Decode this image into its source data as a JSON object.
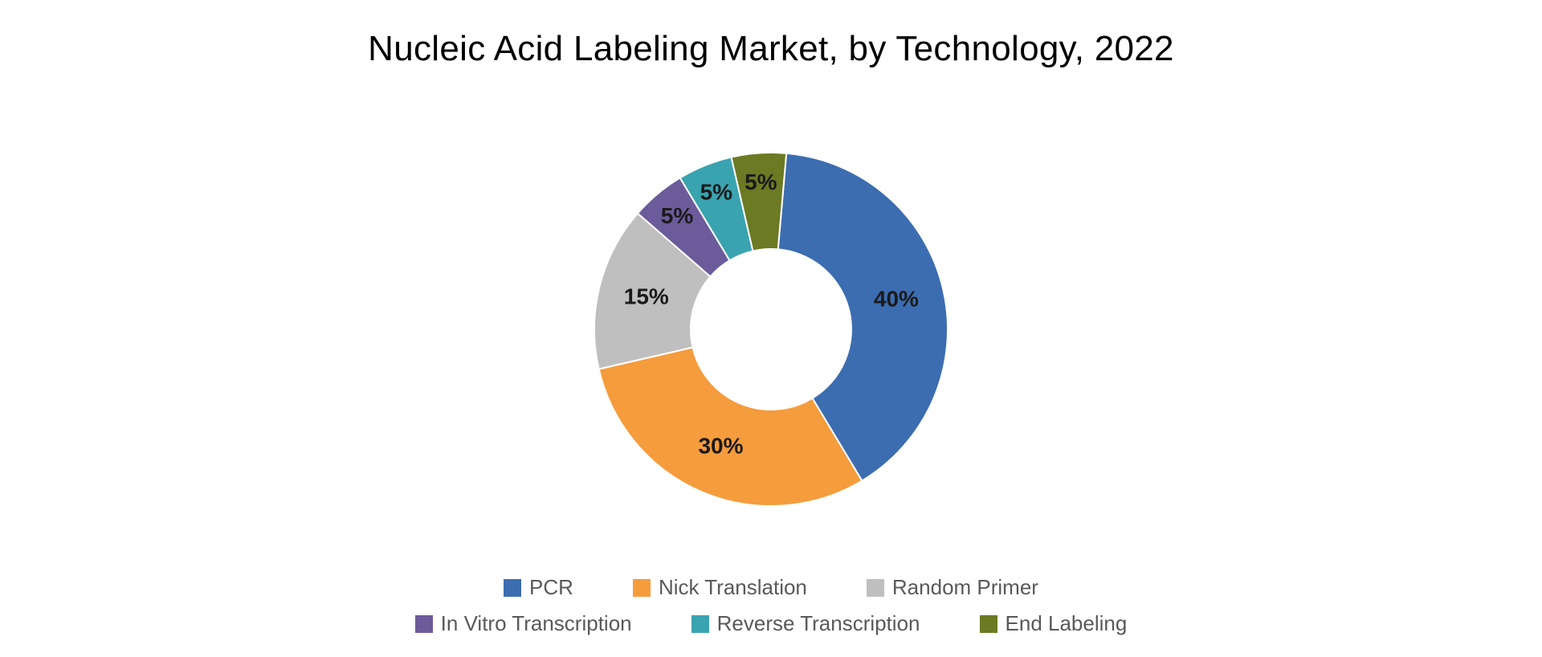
{
  "title": "Nucleic Acid Labeling Market, by Technology, 2022",
  "chart": {
    "type": "donut",
    "background_color": "#ffffff",
    "title_fontsize": 44,
    "label_fontsize": 28,
    "legend_fontsize": 26,
    "legend_color": "#595959",
    "outer_radius": 220,
    "inner_radius": 100,
    "label_radius": 160,
    "start_angle_deg": 5,
    "direction": "clockwise",
    "slices": [
      {
        "key": "pcr",
        "label": "PCR",
        "value": 40,
        "color": "#3c6db0",
        "display": "40%"
      },
      {
        "key": "nick",
        "label": "Nick Translation",
        "value": 30,
        "color": "#f59c3d",
        "display": "30%"
      },
      {
        "key": "rand",
        "label": "Random Primer",
        "value": 15,
        "color": "#bfbfbf",
        "display": "15%"
      },
      {
        "key": "ivt",
        "label": "In Vitro Transcription",
        "value": 5,
        "color": "#6b5b9a",
        "display": "5%"
      },
      {
        "key": "rev",
        "label": "Reverse Transcription",
        "value": 5,
        "color": "#3aa3b0",
        "display": "5%"
      },
      {
        "key": "end",
        "label": "End Labeling",
        "value": 5,
        "color": "#6b7a23",
        "display": "5%"
      }
    ]
  }
}
